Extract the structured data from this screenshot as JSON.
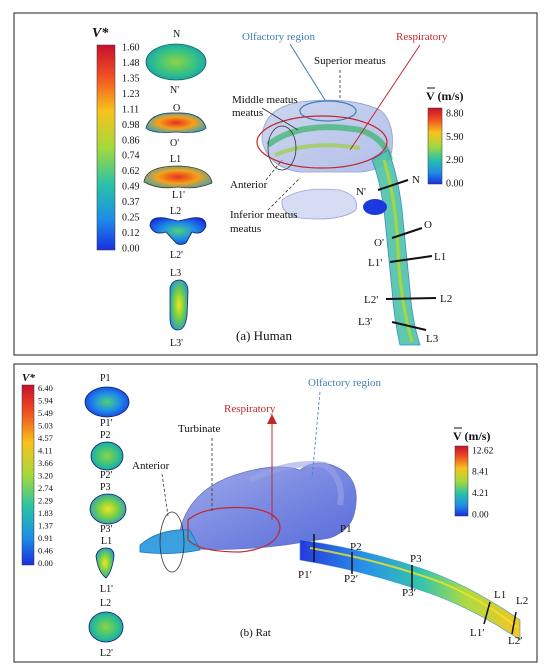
{
  "panel_a": {
    "caption": "(a) Human",
    "left_legend": {
      "title": "V*",
      "ticks": [
        "1.60",
        "1.48",
        "1.35",
        "1.23",
        "1.11",
        "0.98",
        "0.86",
        "0.74",
        "0.62",
        "0.49",
        "0.37",
        "0.25",
        "0.12",
        "0.00"
      ]
    },
    "right_legend": {
      "title": "V (m/s)",
      "ticks": [
        "8.80",
        "5.90",
        "2.90",
        "0.00"
      ]
    },
    "section_labels": [
      "N",
      "N'",
      "O",
      "O'",
      "L1",
      "L1'",
      "L2",
      "L2'",
      "L3",
      "L3'"
    ],
    "annotations": {
      "olfactory": "Olfactory region",
      "respiratory": "Respiratory",
      "superior": "Superior meatus",
      "middle": "Middle meatus",
      "anterior": "Anterior",
      "inferior": "Inferior meatus"
    },
    "cut_labels": {
      "n_prime": "N'",
      "n": "N",
      "o_prime": "O'",
      "o": "O",
      "l1_prime": "L1'",
      "l1": "L1",
      "l2_prime": "L2'",
      "l2": "L2",
      "l3_prime": "L3'",
      "l3": "L3"
    }
  },
  "panel_b": {
    "caption": "(b) Rat",
    "left_legend": {
      "title": "V*",
      "ticks": [
        "6.40",
        "5.94",
        "5.49",
        "5.03",
        "4.57",
        "4.11",
        "3.66",
        "3.20",
        "2.74",
        "2.29",
        "1.83",
        "1.37",
        "0.91",
        "0.46",
        "0.00"
      ]
    },
    "right_legend": {
      "title": "V (m/s)",
      "ticks": [
        "12.62",
        "8.41",
        "4.21",
        "0.00"
      ]
    },
    "section_labels": [
      "P1",
      "P1'",
      "P2",
      "P2'",
      "P3",
      "P3'",
      "L1",
      "L1'",
      "L2",
      "L2'"
    ],
    "annotations": {
      "olfactory": "Olfactory region",
      "respiratory": "Respiratory",
      "turbinate": "Turbinate",
      "anterior": "Anterior"
    },
    "cut_labels": {
      "p1": "P1",
      "p1_prime": "P1′",
      "p2": "P2",
      "p2_prime": "P2′",
      "p3": "P3",
      "p3_prime": "P3′",
      "l1": "L1",
      "l1_prime": "L1′",
      "l2": "L2",
      "l2_prime": "L2′"
    }
  },
  "colors": {
    "olfactory_blue": "#3f7fb8",
    "respiratory_red": "#c0282d",
    "jet_top": "#d7191c",
    "jet_bottom": "#1a2fe0"
  }
}
